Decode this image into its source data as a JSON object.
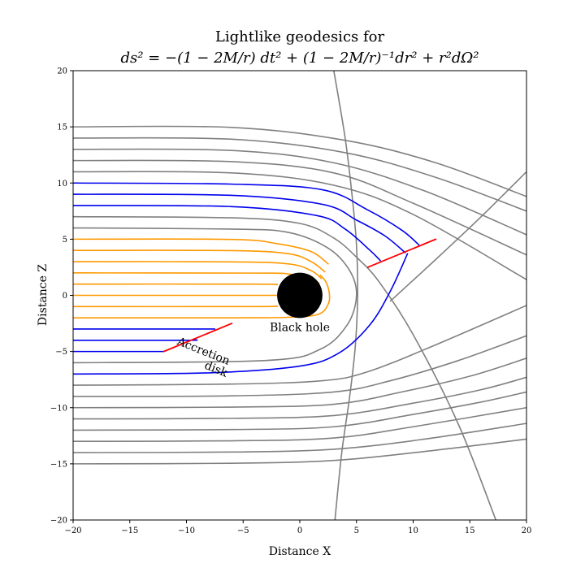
{
  "chart_data": {
    "type": "line",
    "title": "Lightlike geodesics for",
    "subtitle_formula": "ds² = −(1 − 2M/r) dt² + (1 − 2M/r)⁻¹dr² + r²dΩ²",
    "xlabel": "Distance X",
    "ylabel": "Distance Z",
    "xlim": [
      -20,
      20
    ],
    "ylim": [
      -20,
      20
    ],
    "xticks": [
      -20,
      -15,
      -10,
      -5,
      0,
      5,
      10,
      15,
      20
    ],
    "yticks": [
      -20,
      -15,
      -10,
      -5,
      0,
      5,
      10,
      15,
      20
    ],
    "xtick_labels": [
      "−20",
      "−15",
      "−10",
      "−5",
      "0",
      "5",
      "10",
      "15",
      "20"
    ],
    "ytick_labels": [
      "−20",
      "−15",
      "−10",
      "−5",
      "0",
      "5",
      "10",
      "15",
      "20"
    ],
    "grid": false,
    "colors": {
      "gray": "#808080",
      "orange": "#ff9900",
      "blue": "#0000ee",
      "red": "#ff0000",
      "black_hole": "#000000"
    },
    "series": [
      {
        "color": "gray",
        "points": [
          [
            -20,
            15
          ],
          [
            -6,
            14.95
          ],
          [
            4,
            13.8
          ],
          [
            12,
            11.8
          ],
          [
            20,
            8.8
          ]
        ]
      },
      {
        "color": "gray",
        "points": [
          [
            -20,
            14
          ],
          [
            -6,
            13.9
          ],
          [
            4,
            12.7
          ],
          [
            12,
            10.5
          ],
          [
            20,
            7.5
          ]
        ]
      },
      {
        "color": "gray",
        "points": [
          [
            -20,
            13
          ],
          [
            -6,
            12.9
          ],
          [
            3,
            11.8
          ],
          [
            11,
            9.3
          ],
          [
            20,
            5.4
          ]
        ]
      },
      {
        "color": "gray",
        "points": [
          [
            -20,
            12
          ],
          [
            -6,
            11.9
          ],
          [
            3,
            10.9
          ],
          [
            10,
            8.2
          ],
          [
            20,
            3.6
          ]
        ]
      },
      {
        "color": "gray",
        "points": [
          [
            -20,
            11
          ],
          [
            -6,
            10.9
          ],
          [
            3,
            9.8
          ],
          [
            10,
            7.2
          ],
          [
            20,
            1.4
          ]
        ]
      },
      {
        "color": "blue",
        "points": [
          [
            -20,
            10
          ],
          [
            -6,
            9.9
          ],
          [
            2,
            9.4
          ],
          [
            6,
            7.6
          ],
          [
            9,
            5.8
          ],
          [
            10.5,
            4.5
          ]
        ]
      },
      {
        "color": "blue",
        "points": [
          [
            -20,
            9
          ],
          [
            -6,
            8.9
          ],
          [
            2,
            8.1
          ],
          [
            5,
            6.7
          ],
          [
            7.5,
            5.3
          ],
          [
            9.3,
            3.8
          ]
        ]
      },
      {
        "color": "blue",
        "points": [
          [
            -20,
            8
          ],
          [
            -6,
            7.9
          ],
          [
            1.5,
            7.1
          ],
          [
            4,
            5.9
          ],
          [
            6.2,
            4.0
          ],
          [
            7.1,
            3.1
          ]
        ]
      },
      {
        "color": "gray",
        "points": [
          [
            -20,
            7
          ],
          [
            -6,
            6.9
          ],
          [
            0,
            6.4
          ],
          [
            3,
            5.1
          ],
          [
            5,
            3.4
          ],
          [
            7,
            1.2
          ],
          [
            10,
            -3.5
          ],
          [
            14,
            -11.5
          ],
          [
            17.3,
            -20
          ]
        ]
      },
      {
        "color": "gray",
        "points": [
          [
            -20,
            6
          ],
          [
            -6,
            5.9
          ],
          [
            -1,
            5.6
          ],
          [
            2.5,
            4.2
          ],
          [
            4.4,
            2.2
          ],
          [
            5,
            0
          ],
          [
            4.2,
            -2.6
          ],
          [
            1.8,
            -4.8
          ],
          [
            -3,
            -5.8
          ],
          [
            -20,
            -6
          ]
        ]
      },
      {
        "color": "orange",
        "points": [
          [
            -20,
            5
          ],
          [
            -6,
            4.98
          ],
          [
            -2,
            4.6
          ],
          [
            1,
            3.9
          ],
          [
            2.5,
            2.8
          ]
        ]
      },
      {
        "color": "orange",
        "points": [
          [
            -20,
            4
          ],
          [
            -6,
            3.98
          ],
          [
            -1,
            3.7
          ],
          [
            1,
            3.0
          ],
          [
            2.2,
            2.1
          ]
        ]
      },
      {
        "color": "orange",
        "points": [
          [
            -20,
            3
          ],
          [
            -6,
            2.98
          ],
          [
            -1,
            2.8
          ],
          [
            1,
            2.2
          ],
          [
            1.9,
            1.5
          ]
        ]
      },
      {
        "color": "orange",
        "points": [
          [
            -20,
            2
          ],
          [
            -4,
            1.98
          ],
          [
            -1,
            1.9
          ],
          [
            0.8,
            1.4
          ],
          [
            1.7,
            1.1
          ]
        ]
      },
      {
        "color": "orange",
        "points": [
          [
            -20,
            1
          ],
          [
            -4,
            1
          ],
          [
            -2,
            0.95
          ]
        ]
      },
      {
        "color": "orange",
        "points": [
          [
            -20,
            0
          ],
          [
            -2,
            0
          ]
        ]
      },
      {
        "color": "orange",
        "points": [
          [
            -20,
            -1
          ],
          [
            -4,
            -1
          ],
          [
            -2,
            -0.95
          ]
        ]
      },
      {
        "color": "orange",
        "points": [
          [
            -20,
            -2
          ],
          [
            -5,
            -2
          ],
          [
            -1,
            -1.95
          ],
          [
            1.6,
            -1.7
          ],
          [
            2.5,
            -0.8
          ],
          [
            2.6,
            0.2
          ],
          [
            2.3,
            1.2
          ],
          [
            1.8,
            1.8
          ]
        ]
      },
      {
        "color": "blue",
        "points": [
          [
            -20,
            -3
          ],
          [
            -9,
            -3
          ],
          [
            -7.5,
            -3.0
          ]
        ]
      },
      {
        "color": "blue",
        "points": [
          [
            -20,
            -4
          ],
          [
            -10,
            -4
          ],
          [
            -9.4,
            -3.95
          ]
        ]
      },
      {
        "color": "blue",
        "points": [
          [
            -20,
            -5
          ],
          [
            -12,
            -5
          ]
        ]
      },
      {
        "color": "blue",
        "points": [
          [
            -20,
            -7
          ],
          [
            -8,
            -6.9
          ],
          [
            0,
            -6.3
          ],
          [
            3.5,
            -5.1
          ],
          [
            6.2,
            -2.6
          ],
          [
            8,
            0.4
          ],
          [
            9.5,
            3.7
          ]
        ]
      },
      {
        "color": "gray",
        "points": [
          [
            -20,
            -8
          ],
          [
            -6,
            -7.9
          ],
          [
            2,
            -7.6
          ],
          [
            6,
            -6.8
          ],
          [
            12,
            -4.4
          ],
          [
            20,
            -0.9
          ]
        ]
      },
      {
        "color": "gray",
        "points": [
          [
            -20,
            -9
          ],
          [
            -6,
            -8.95
          ],
          [
            3,
            -8.6
          ],
          [
            8,
            -7.6
          ],
          [
            14,
            -5.8
          ],
          [
            20,
            -3.6
          ]
        ]
      },
      {
        "color": "gray",
        "points": [
          [
            -20,
            -10
          ],
          [
            -6,
            -9.95
          ],
          [
            3,
            -9.7
          ],
          [
            9,
            -8.6
          ],
          [
            15,
            -7.2
          ],
          [
            20,
            -5.6
          ]
        ]
      },
      {
        "color": "gray",
        "points": [
          [
            -20,
            -11
          ],
          [
            -6,
            -10.95
          ],
          [
            3,
            -10.7
          ],
          [
            10,
            -9.6
          ],
          [
            16,
            -8.4
          ],
          [
            20,
            -7.3
          ]
        ]
      },
      {
        "color": "gray",
        "points": [
          [
            -20,
            -12
          ],
          [
            -6,
            -11.95
          ],
          [
            3,
            -11.7
          ],
          [
            10,
            -10.6
          ],
          [
            16,
            -9.5
          ],
          [
            20,
            -8.6
          ]
        ]
      },
      {
        "color": "gray",
        "points": [
          [
            -20,
            -13
          ],
          [
            -6,
            -12.95
          ],
          [
            3,
            -12.7
          ],
          [
            10,
            -11.7
          ],
          [
            20,
            -10
          ]
        ]
      },
      {
        "color": "gray",
        "points": [
          [
            -20,
            -14
          ],
          [
            -6,
            -13.95
          ],
          [
            3,
            -13.7
          ],
          [
            11,
            -12.8
          ],
          [
            20,
            -11.4
          ]
        ]
      },
      {
        "color": "gray",
        "points": [
          [
            -20,
            -15
          ],
          [
            -6,
            -14.95
          ],
          [
            3,
            -14.7
          ],
          [
            11,
            -13.9
          ],
          [
            20,
            -12.8
          ]
        ]
      },
      {
        "color": "gray",
        "points": [
          [
            3,
            20
          ],
          [
            4,
            14
          ],
          [
            4.6,
            9
          ],
          [
            5,
            4.5
          ],
          [
            5.1,
            0
          ],
          [
            4.9,
            -4.5
          ],
          [
            4.4,
            -9
          ],
          [
            3.7,
            -14
          ],
          [
            3.1,
            -20
          ]
        ]
      },
      {
        "color": "gray",
        "points": [
          [
            8,
            -0.5
          ],
          [
            12,
            3.2
          ],
          [
            16,
            7.0
          ],
          [
            20,
            11
          ]
        ]
      },
      {
        "color": "red",
        "points": [
          [
            6,
            2.5
          ],
          [
            12,
            5
          ]
        ]
      },
      {
        "color": "red",
        "points": [
          [
            -12,
            -5
          ],
          [
            -6,
            -2.5
          ]
        ]
      }
    ],
    "black_hole": {
      "x": 0,
      "y": 0,
      "radius": 2
    },
    "annotations": [
      {
        "text": "Black hole",
        "x": 0,
        "y": -2.9
      },
      {
        "text": "Accretion",
        "x": -8.5,
        "y": -5.0,
        "rotation": 22
      },
      {
        "text": "disk",
        "x": -7.4,
        "y": -6.6,
        "rotation": 22
      }
    ]
  }
}
